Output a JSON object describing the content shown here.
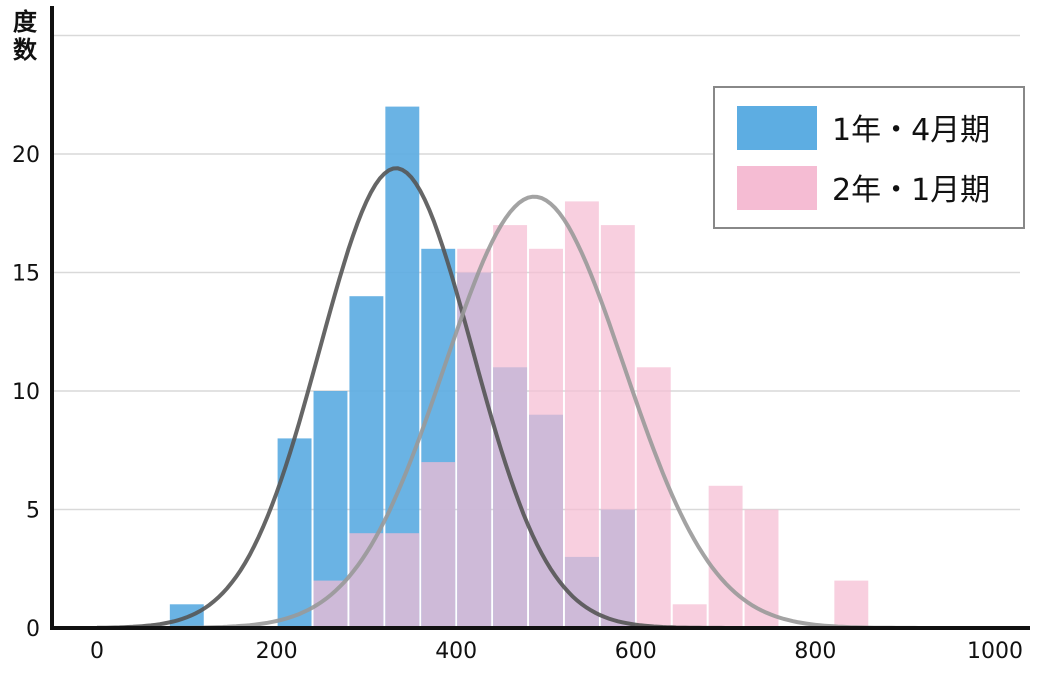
{
  "chart_data": {
    "type": "bar",
    "ylabel": "度数",
    "xlabel": "",
    "xlim": [
      0,
      1000
    ],
    "ylim": [
      0,
      25
    ],
    "x_ticks": [
      "0",
      "200",
      "400",
      "600",
      "800",
      "1000"
    ],
    "y_ticks": [
      "0",
      "5",
      "10",
      "15",
      "20"
    ],
    "grid": "horizontal",
    "legend_position": "top-right",
    "bin_width": 40,
    "series": [
      {
        "name": "1年・4月期",
        "color": "#5dade2",
        "bins": [
          {
            "x": 100,
            "value": 1
          },
          {
            "x": 220,
            "value": 8
          },
          {
            "x": 260,
            "value": 10
          },
          {
            "x": 300,
            "value": 14
          },
          {
            "x": 340,
            "value": 22
          },
          {
            "x": 380,
            "value": 16
          },
          {
            "x": 420,
            "value": 15
          },
          {
            "x": 460,
            "value": 11
          },
          {
            "x": 500,
            "value": 9
          },
          {
            "x": 540,
            "value": 3
          },
          {
            "x": 580,
            "value": 5
          }
        ],
        "curve": {
          "mean": 333,
          "peak": 19.4,
          "sd": 85,
          "color": "#555555"
        }
      },
      {
        "name": "2年・1月期",
        "color": "#f5bcd3",
        "bins": [
          {
            "x": 260,
            "value": 2
          },
          {
            "x": 300,
            "value": 4
          },
          {
            "x": 340,
            "value": 4
          },
          {
            "x": 380,
            "value": 7
          },
          {
            "x": 420,
            "value": 16
          },
          {
            "x": 460,
            "value": 17
          },
          {
            "x": 500,
            "value": 16
          },
          {
            "x": 540,
            "value": 18
          },
          {
            "x": 580,
            "value": 17
          },
          {
            "x": 620,
            "value": 11
          },
          {
            "x": 660,
            "value": 1
          },
          {
            "x": 700,
            "value": 6
          },
          {
            "x": 740,
            "value": 5
          },
          {
            "x": 840,
            "value": 2
          }
        ],
        "curve": {
          "mean": 487,
          "peak": 18.2,
          "sd": 100,
          "color": "#999999"
        }
      }
    ]
  }
}
